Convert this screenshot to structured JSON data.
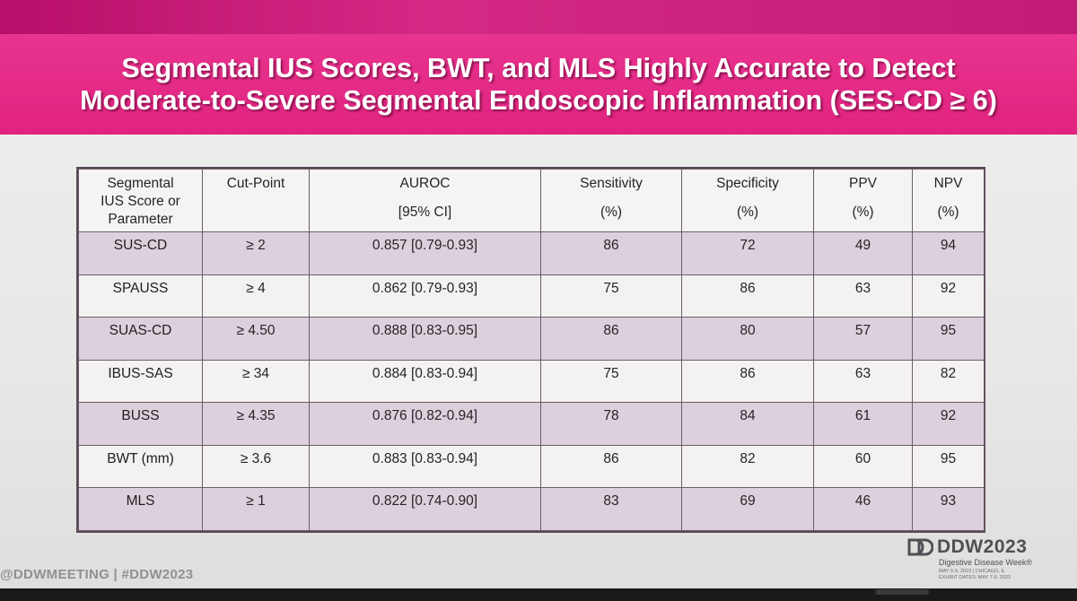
{
  "slide": {
    "title_line1": "Segmental IUS Scores, BWT, and MLS Highly Accurate to Detect",
    "title_line2": "Moderate-to-Severe Segmental Endoscopic Inflammation (SES-CD ≥ 6)"
  },
  "table": {
    "headers": [
      {
        "line1": "Segmental",
        "line2": "IUS Score or",
        "line3": "Parameter"
      },
      {
        "line1": "Cut-Point",
        "line2": "",
        "line3": ""
      },
      {
        "line1": "AUROC",
        "line2": "[95% CI]",
        "line3": ""
      },
      {
        "line1": "Sensitivity",
        "line2": "(%)",
        "line3": ""
      },
      {
        "line1": "Specificity",
        "line2": "(%)",
        "line3": ""
      },
      {
        "line1": "PPV",
        "line2": "(%)",
        "line3": ""
      },
      {
        "line1": "NPV",
        "line2": "(%)",
        "line3": ""
      }
    ],
    "rows": [
      {
        "param": "SUS-CD",
        "cut": "≥ 2",
        "auroc": "0.857 [0.79-0.93]",
        "sens": "86",
        "spec": "72",
        "ppv": "49",
        "npv": "94"
      },
      {
        "param": "SPAUSS",
        "cut": "≥ 4",
        "auroc": "0.862 [0.79-0.93]",
        "sens": "75",
        "spec": "86",
        "ppv": "63",
        "npv": "92"
      },
      {
        "param": "SUAS-CD",
        "cut": "≥ 4.50",
        "auroc": "0.888 [0.83-0.95]",
        "sens": "86",
        "spec": "80",
        "ppv": "57",
        "npv": "95"
      },
      {
        "param": "IBUS-SAS",
        "cut": "≥ 34",
        "auroc": "0.884 [0.83-0.94]",
        "sens": "75",
        "spec": "86",
        "ppv": "63",
        "npv": "82"
      },
      {
        "param": "BUSS",
        "cut": "≥ 4.35",
        "auroc": "0.876 [0.82-0.94]",
        "sens": "78",
        "spec": "84",
        "ppv": "61",
        "npv": "92"
      },
      {
        "param": "BWT (mm)",
        "cut": "≥ 3.6",
        "auroc": "0.883 [0.83-0.94]",
        "sens": "86",
        "spec": "82",
        "ppv": "60",
        "npv": "95"
      },
      {
        "param": "MLS",
        "cut": "≥ 1",
        "auroc": "0.822 [0.74-0.90]",
        "sens": "83",
        "spec": "69",
        "ppv": "46",
        "npv": "93"
      }
    ]
  },
  "footer": {
    "handle": "@DDWMEETING | #DDW2023"
  },
  "logo": {
    "name": "DDW2023",
    "tagline": "Digestive Disease Week®",
    "details_line1": "MAY 6-9, 2023 | CHICAGO, IL",
    "details_line2": "EXHIBIT DATES: MAY 7-9, 2023"
  },
  "colors": {
    "header_pink": "#e0237f",
    "row_shade": "#dcd0dc",
    "table_border": "#6b5b68"
  }
}
